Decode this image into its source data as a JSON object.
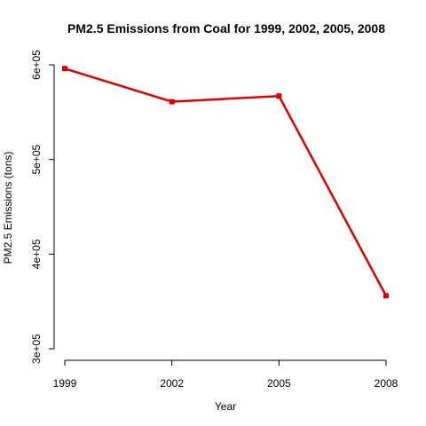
{
  "chart_data": {
    "type": "line",
    "title": "PM2.5 Emissions from Coal for 1999, 2002, 2005, 2008",
    "xlabel": "Year",
    "ylabel": "PM2.5 Emissions (tons)",
    "x": [
      1999,
      2002,
      2005,
      2008
    ],
    "x_tick_labels": [
      "1999",
      "2002",
      "2005",
      "2008"
    ],
    "y_ticks": [
      300000,
      400000,
      500000,
      600000
    ],
    "y_tick_labels": [
      "3e+05",
      "4e+05",
      "5e+05",
      "6e+05"
    ],
    "ylim": [
      300000,
      600000
    ],
    "grid": false,
    "series": [
      {
        "values": [
          596000,
          561000,
          567000,
          356000
        ],
        "color": "#dd0000"
      }
    ]
  }
}
